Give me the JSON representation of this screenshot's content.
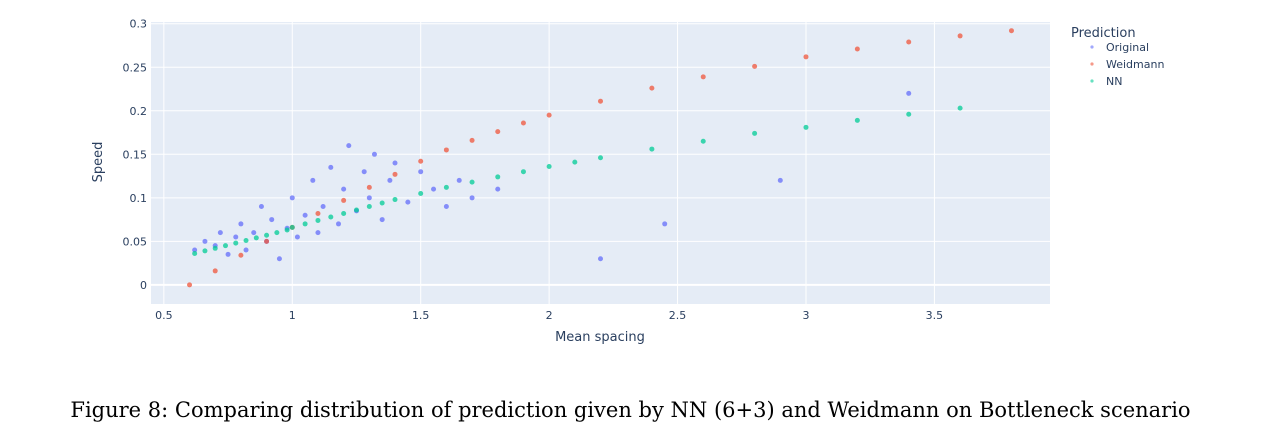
{
  "chart_data": {
    "type": "scatter",
    "xlabel": "Mean spacing",
    "ylabel": "Speed",
    "xlim": [
      0.45,
      3.95
    ],
    "ylim": [
      -0.022,
      0.302
    ],
    "x_ticks": [
      0.5,
      1,
      1.5,
      2,
      2.5,
      3,
      3.5
    ],
    "x_tick_labels": [
      "0.5",
      "1",
      "1.5",
      "2",
      "2.5",
      "3",
      "3.5"
    ],
    "y_ticks": [
      0,
      0.05,
      0.1,
      0.15,
      0.2,
      0.25,
      0.3
    ],
    "y_tick_labels": [
      "0",
      "0.05",
      "0.1",
      "0.15",
      "0.2",
      "0.25",
      "0.3"
    ],
    "grid": true,
    "legend": {
      "title": "Prediction",
      "placement": "top-right, outside plot"
    },
    "series": [
      {
        "name": "Original",
        "color": "#636efa",
        "points": [
          [
            0.62,
            0.04
          ],
          [
            0.66,
            0.05
          ],
          [
            0.7,
            0.045
          ],
          [
            0.72,
            0.06
          ],
          [
            0.75,
            0.035
          ],
          [
            0.78,
            0.055
          ],
          [
            0.8,
            0.07
          ],
          [
            0.82,
            0.04
          ],
          [
            0.85,
            0.06
          ],
          [
            0.88,
            0.09
          ],
          [
            0.9,
            0.05
          ],
          [
            0.92,
            0.075
          ],
          [
            0.95,
            0.03
          ],
          [
            0.98,
            0.065
          ],
          [
            1.0,
            0.1
          ],
          [
            1.02,
            0.055
          ],
          [
            1.05,
            0.08
          ],
          [
            1.08,
            0.12
          ],
          [
            1.1,
            0.06
          ],
          [
            1.12,
            0.09
          ],
          [
            1.15,
            0.135
          ],
          [
            1.18,
            0.07
          ],
          [
            1.2,
            0.11
          ],
          [
            1.22,
            0.16
          ],
          [
            1.25,
            0.085
          ],
          [
            1.28,
            0.13
          ],
          [
            1.3,
            0.1
          ],
          [
            1.32,
            0.15
          ],
          [
            1.35,
            0.075
          ],
          [
            1.38,
            0.12
          ],
          [
            1.4,
            0.14
          ],
          [
            1.45,
            0.095
          ],
          [
            1.5,
            0.13
          ],
          [
            1.55,
            0.11
          ],
          [
            1.6,
            0.09
          ],
          [
            1.65,
            0.12
          ],
          [
            1.7,
            0.1
          ],
          [
            1.8,
            0.11
          ],
          [
            2.2,
            0.03
          ],
          [
            2.45,
            0.07
          ],
          [
            2.9,
            0.12
          ],
          [
            3.4,
            0.22
          ]
        ]
      },
      {
        "name": "Weidmann",
        "color": "#ef553b",
        "points": [
          [
            0.6,
            0.0
          ],
          [
            0.7,
            0.016
          ],
          [
            0.8,
            0.034
          ],
          [
            0.9,
            0.05
          ],
          [
            1.0,
            0.066
          ],
          [
            1.1,
            0.082
          ],
          [
            1.2,
            0.097
          ],
          [
            1.3,
            0.112
          ],
          [
            1.4,
            0.127
          ],
          [
            1.5,
            0.142
          ],
          [
            1.6,
            0.155
          ],
          [
            1.7,
            0.166
          ],
          [
            1.8,
            0.176
          ],
          [
            1.9,
            0.186
          ],
          [
            2.0,
            0.195
          ],
          [
            2.2,
            0.211
          ],
          [
            2.4,
            0.226
          ],
          [
            2.6,
            0.239
          ],
          [
            2.8,
            0.251
          ],
          [
            3.0,
            0.262
          ],
          [
            3.2,
            0.271
          ],
          [
            3.4,
            0.279
          ],
          [
            3.6,
            0.286
          ],
          [
            3.8,
            0.292
          ]
        ]
      },
      {
        "name": "NN",
        "color": "#00cc96",
        "points": [
          [
            0.62,
            0.036
          ],
          [
            0.66,
            0.039
          ],
          [
            0.7,
            0.042
          ],
          [
            0.74,
            0.045
          ],
          [
            0.78,
            0.048
          ],
          [
            0.82,
            0.051
          ],
          [
            0.86,
            0.054
          ],
          [
            0.9,
            0.057
          ],
          [
            0.94,
            0.06
          ],
          [
            0.98,
            0.063
          ],
          [
            1.0,
            0.066
          ],
          [
            1.05,
            0.07
          ],
          [
            1.1,
            0.074
          ],
          [
            1.15,
            0.078
          ],
          [
            1.2,
            0.082
          ],
          [
            1.25,
            0.086
          ],
          [
            1.3,
            0.09
          ],
          [
            1.35,
            0.094
          ],
          [
            1.4,
            0.098
          ],
          [
            1.5,
            0.105
          ],
          [
            1.6,
            0.112
          ],
          [
            1.7,
            0.118
          ],
          [
            1.8,
            0.124
          ],
          [
            1.9,
            0.13
          ],
          [
            2.0,
            0.136
          ],
          [
            2.1,
            0.141
          ],
          [
            2.2,
            0.146
          ],
          [
            2.4,
            0.156
          ],
          [
            2.6,
            0.165
          ],
          [
            2.8,
            0.174
          ],
          [
            3.0,
            0.181
          ],
          [
            3.2,
            0.189
          ],
          [
            3.4,
            0.196
          ],
          [
            3.6,
            0.203
          ]
        ]
      }
    ]
  },
  "caption": "Figure 8: Comparing distribution of prediction given by NN (6+3) and Weidmann on Bottleneck scenario"
}
